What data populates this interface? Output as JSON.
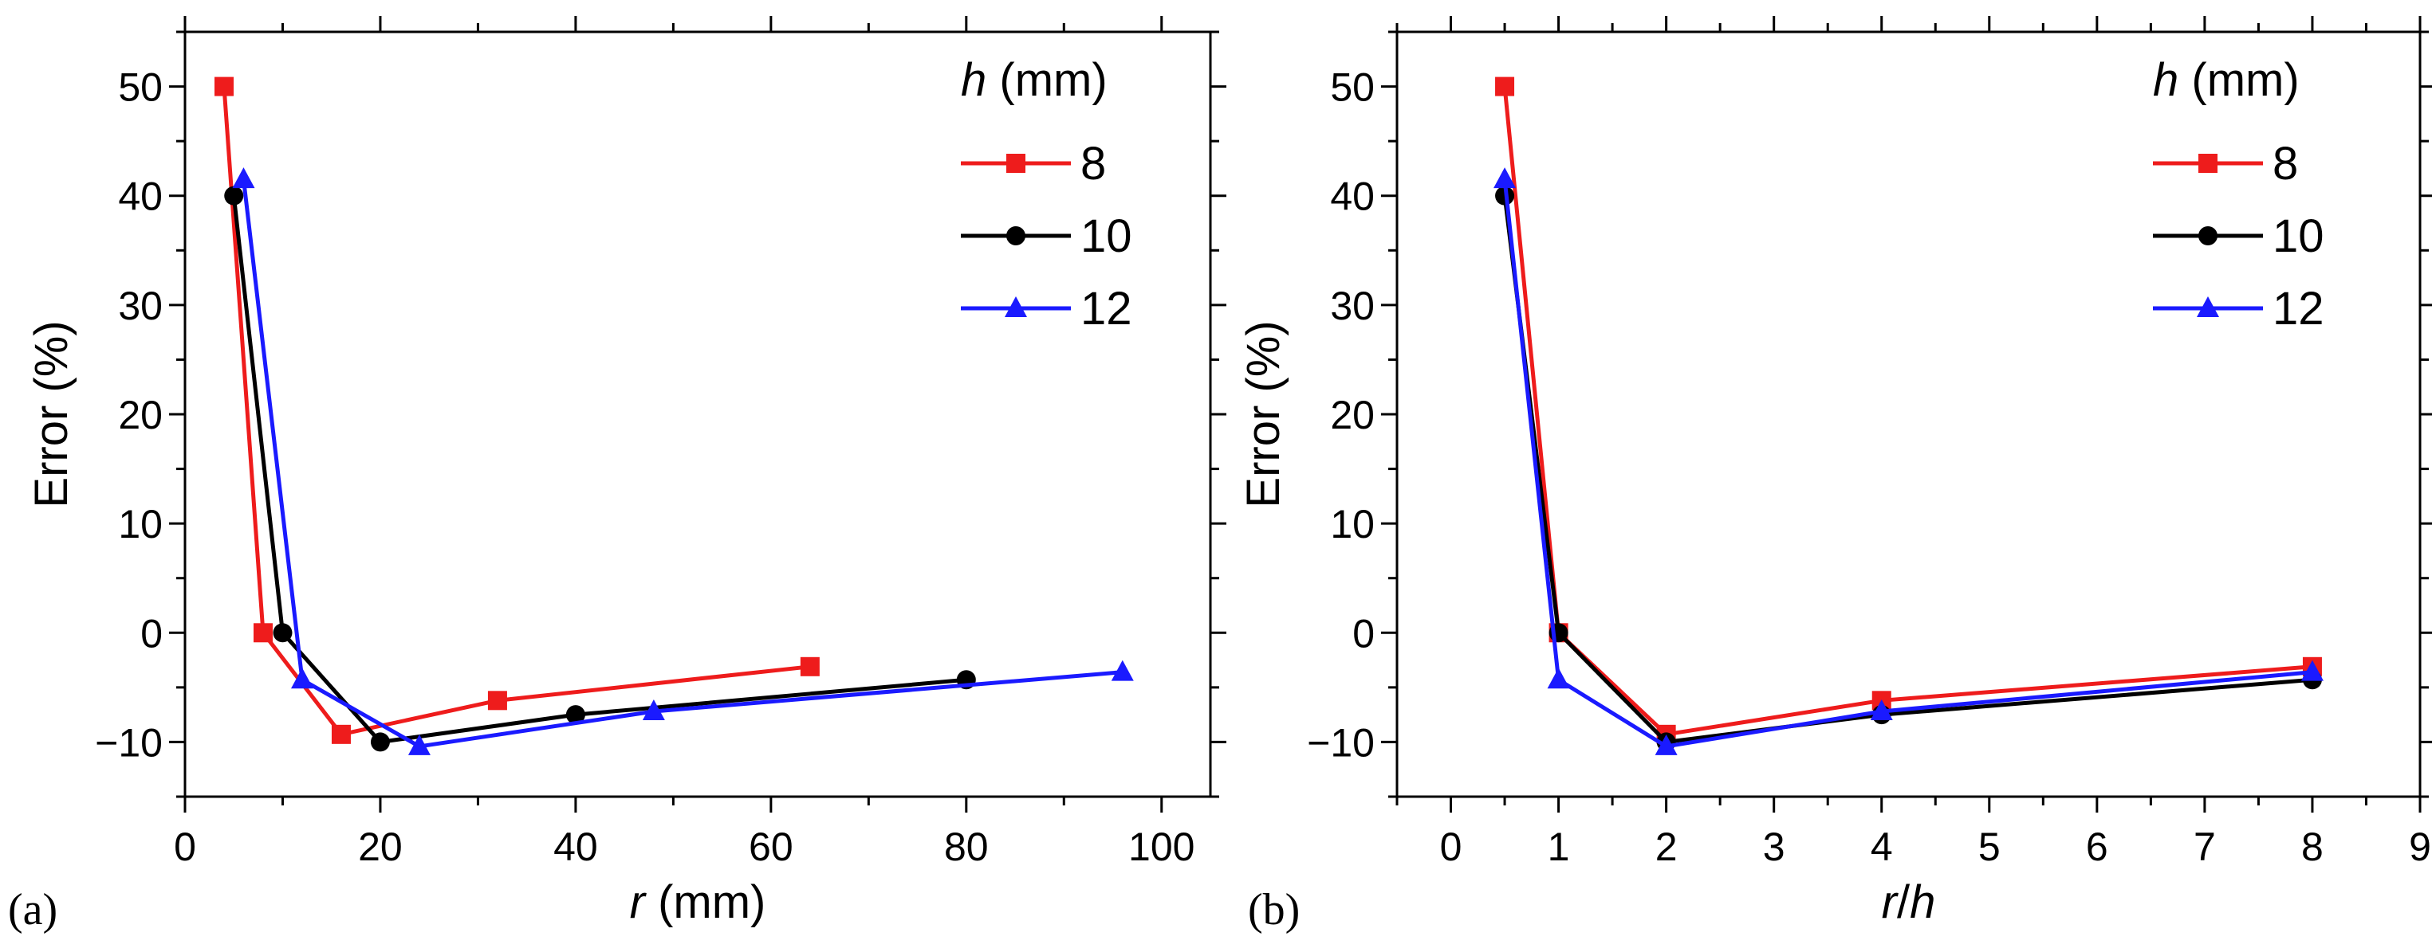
{
  "chart_data": [
    {
      "type": "line",
      "panel_label": "(a)",
      "xlabel": [
        {
          "text": "r",
          "italic": true
        },
        {
          "text": " (mm)",
          "italic": false
        }
      ],
      "ylabel": "Error (%)",
      "xlim": [
        0,
        105
      ],
      "ylim": [
        -15,
        55
      ],
      "xticks": [
        0,
        20,
        40,
        60,
        80,
        100
      ],
      "yticks": [
        -10,
        0,
        10,
        20,
        30,
        40,
        50
      ],
      "xtick_labels": [
        "0",
        "20",
        "40",
        "60",
        "80",
        "100"
      ],
      "ytick_labels": [
        "−10",
        "0",
        "10",
        "20",
        "30",
        "40",
        "50"
      ],
      "legend_title": [
        {
          "text": "h",
          "italic": true
        },
        {
          "text": " (mm)",
          "italic": false
        }
      ],
      "legend_position": "top-right",
      "series": [
        {
          "name": "8",
          "color": "#ee1c1c",
          "marker": "square",
          "x": [
            4,
            8,
            16,
            32,
            64
          ],
          "y": [
            50,
            0,
            -9.3,
            -6.2,
            -3.1
          ]
        },
        {
          "name": "10",
          "color": "#000000",
          "marker": "circle",
          "x": [
            5,
            10,
            20,
            40,
            80
          ],
          "y": [
            40,
            0,
            -10,
            -7.5,
            -4.3
          ]
        },
        {
          "name": "12",
          "color": "#1a1aff",
          "marker": "triangle",
          "x": [
            6,
            12,
            24,
            48,
            96
          ],
          "y": [
            41.5,
            -4.3,
            -10.4,
            -7.2,
            -3.6
          ]
        }
      ]
    },
    {
      "type": "line",
      "panel_label": "(b)",
      "xlabel": [
        {
          "text": "r",
          "italic": true
        },
        {
          "text": "/",
          "italic": false
        },
        {
          "text": "h",
          "italic": true
        }
      ],
      "ylabel": "Error (%)",
      "xlim": [
        -0.5,
        9
      ],
      "ylim": [
        -15,
        55
      ],
      "xticks": [
        0,
        1,
        2,
        3,
        4,
        5,
        6,
        7,
        8,
        9
      ],
      "yticks": [
        -10,
        0,
        10,
        20,
        30,
        40,
        50
      ],
      "xtick_labels": [
        "0",
        "1",
        "2",
        "3",
        "4",
        "5",
        "6",
        "7",
        "8",
        "9"
      ],
      "ytick_labels": [
        "−10",
        "0",
        "10",
        "20",
        "30",
        "40",
        "50"
      ],
      "legend_title": [
        {
          "text": "h",
          "italic": true
        },
        {
          "text": " (mm)",
          "italic": false
        }
      ],
      "legend_position": "top-right",
      "series": [
        {
          "name": "8",
          "color": "#ee1c1c",
          "marker": "square",
          "x": [
            0.5,
            1,
            2,
            4,
            8
          ],
          "y": [
            50,
            0,
            -9.3,
            -6.2,
            -3.1
          ]
        },
        {
          "name": "10",
          "color": "#000000",
          "marker": "circle",
          "x": [
            0.5,
            1,
            2,
            4,
            8
          ],
          "y": [
            40,
            0,
            -10,
            -7.5,
            -4.3
          ]
        },
        {
          "name": "12",
          "color": "#1a1aff",
          "marker": "triangle",
          "x": [
            0.5,
            1,
            2,
            4,
            8
          ],
          "y": [
            41.5,
            -4.3,
            -10.4,
            -7.2,
            -3.6
          ]
        }
      ]
    }
  ]
}
